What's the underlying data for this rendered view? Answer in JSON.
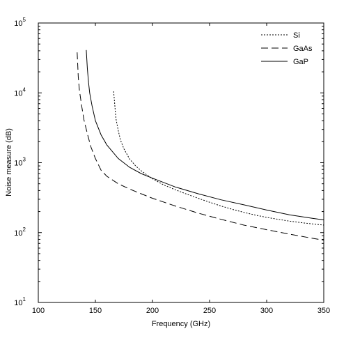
{
  "chart_data": {
    "type": "line",
    "xlabel": "Frequency (GHz)",
    "ylabel": "Noise measure (dB)",
    "xlim": [
      100,
      350
    ],
    "ylim": [
      10,
      100000
    ],
    "y_scale": "log",
    "grid": false,
    "legend_position": "top-right",
    "x_ticks": [
      "100",
      "150",
      "200",
      "250",
      "300",
      "350"
    ],
    "y_ticks": [
      {
        "base": "10",
        "exp": "1"
      },
      {
        "base": "10",
        "exp": "2"
      },
      {
        "base": "10",
        "exp": "3"
      },
      {
        "base": "10",
        "exp": "4"
      },
      {
        "base": "10",
        "exp": "5"
      }
    ],
    "series": [
      {
        "name": "Si",
        "style": "dotted",
        "x": [
          166,
          168,
          170,
          172,
          175,
          180,
          185,
          190,
          195,
          200,
          210,
          220,
          230,
          240,
          250,
          260,
          270,
          280,
          290,
          300,
          310,
          320,
          330,
          340,
          350
        ],
        "y": [
          10500,
          4300,
          2900,
          2100,
          1580,
          1130,
          910,
          770,
          670,
          590,
          480,
          410,
          355,
          310,
          272,
          240,
          215,
          195,
          178,
          165,
          155,
          146,
          139,
          133,
          128
        ]
      },
      {
        "name": "GaAs",
        "style": "dashed",
        "x": [
          134,
          135,
          136,
          138,
          140,
          143,
          146,
          150,
          155,
          160,
          170,
          180,
          190,
          200,
          220,
          240,
          260,
          280,
          300,
          320,
          340,
          350
        ],
        "y": [
          38000,
          17000,
          11000,
          6500,
          4100,
          2600,
          1700,
          1150,
          780,
          640,
          500,
          420,
          360,
          310,
          240,
          190,
          155,
          128,
          110,
          95,
          83,
          78
        ]
      },
      {
        "name": "GaP",
        "style": "solid",
        "x": [
          142,
          143,
          144,
          145,
          147,
          150,
          155,
          160,
          170,
          180,
          190,
          200,
          220,
          240,
          260,
          280,
          300,
          320,
          340,
          350
        ],
        "y": [
          41000,
          22000,
          14000,
          10000,
          6600,
          4000,
          2500,
          1800,
          1150,
          860,
          700,
          600,
          450,
          360,
          295,
          250,
          210,
          180,
          160,
          152
        ]
      }
    ]
  }
}
